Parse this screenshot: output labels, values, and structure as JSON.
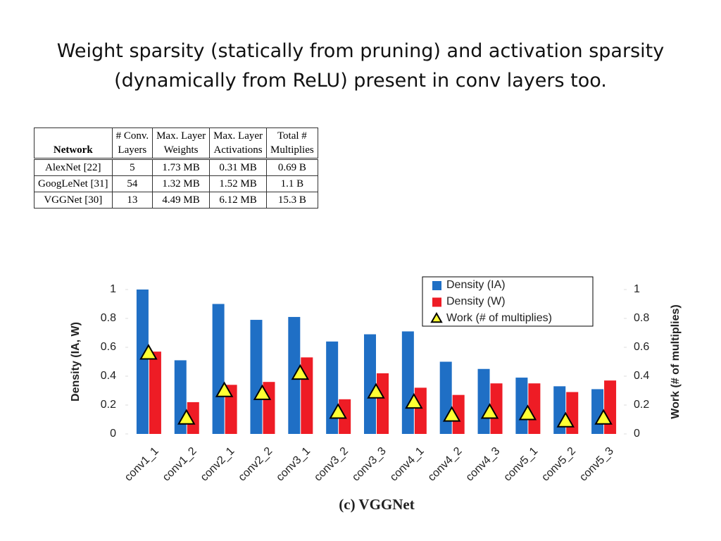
{
  "title": [
    "Weight sparsity (statically from pruning) and activation sparsity",
    "(dynamically from ReLU) present in conv layers too."
  ],
  "table": {
    "header": [
      [
        "Network"
      ],
      [
        "# Conv.",
        "Layers"
      ],
      [
        "Max. Layer",
        "Weights"
      ],
      [
        "Max. Layer",
        "Activations"
      ],
      [
        "Total #",
        "Multiplies"
      ]
    ],
    "rows": [
      [
        "AlexNet [22]",
        "5",
        "1.73 MB",
        "0.31 MB",
        "0.69 B"
      ],
      [
        "GoogLeNet [31]",
        "54",
        "1.32 MB",
        "1.52 MB",
        "1.1 B"
      ],
      [
        "VGGNet [30]",
        "13",
        "4.49 MB",
        "6.12 MB",
        "15.3 B"
      ]
    ]
  },
  "chart_data": {
    "type": "bar",
    "caption": "(c) VGGNet",
    "ylabel": "Density (IA, W)",
    "y2label": "Work (# of multiplies)",
    "categories": [
      "conv1_1",
      "conv1_2",
      "conv2_1",
      "conv2_2",
      "conv3_1",
      "conv3_2",
      "conv3_3",
      "conv4_1",
      "conv4_2",
      "conv4_3",
      "conv5_1",
      "conv5_2",
      "conv5_3"
    ],
    "series": [
      {
        "name": "Density (IA)",
        "color": "#1f6fc5",
        "values": [
          1.0,
          0.51,
          0.9,
          0.79,
          0.81,
          0.64,
          0.69,
          0.71,
          0.5,
          0.45,
          0.39,
          0.33,
          0.31
        ]
      },
      {
        "name": "Density (W)",
        "color": "#ee1c25",
        "values": [
          0.57,
          0.22,
          0.34,
          0.36,
          0.53,
          0.24,
          0.42,
          0.32,
          0.27,
          0.35,
          0.35,
          0.29,
          0.37
        ]
      },
      {
        "name": "Work (# of multiplies)",
        "color": "#ffff33",
        "marker": "triangle",
        "axis": "y2",
        "values": [
          0.56,
          0.11,
          0.3,
          0.28,
          0.42,
          0.15,
          0.29,
          0.22,
          0.13,
          0.15,
          0.14,
          0.09,
          0.11
        ]
      }
    ],
    "ylim": [
      0,
      1
    ],
    "yticks": [
      0,
      0.2,
      0.4,
      0.6,
      0.8,
      1
    ],
    "y2lim": [
      0,
      1
    ],
    "y2ticks": [
      0,
      0.2,
      0.4,
      0.6,
      0.8,
      1
    ],
    "legend": "top-right"
  }
}
